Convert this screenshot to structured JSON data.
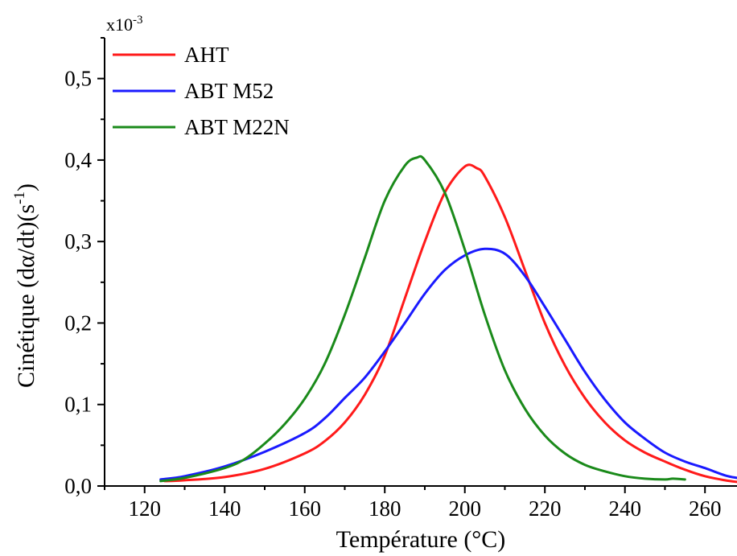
{
  "chart_data": {
    "type": "line",
    "title": "",
    "xlabel": "Température (°C)",
    "ylabel_parts": {
      "main": "Cinétique (d",
      "greek": "α",
      "mid": "/dt)(s",
      "exp": "-1",
      "end": ")"
    },
    "y_multiplier": {
      "base": "x10",
      "exp": "-3"
    },
    "xlim": [
      110,
      268
    ],
    "ylim": [
      0,
      0.55
    ],
    "x_ticks": [
      120,
      140,
      160,
      180,
      200,
      220,
      240,
      260
    ],
    "y_ticks": [
      0.0,
      0.1,
      0.2,
      0.3,
      0.4,
      0.5
    ],
    "y_tick_labels": [
      "0,0",
      "0,1",
      "0,2",
      "0,3",
      "0,4",
      "0,5"
    ],
    "legend_position": "top-left",
    "grid": false,
    "series": [
      {
        "name": "AHT",
        "color": "#ff1a1a",
        "x": [
          125,
          130,
          140,
          150,
          160,
          165,
          170,
          175,
          180,
          185,
          190,
          195,
          200,
          203,
          205,
          210,
          215,
          220,
          225,
          230,
          235,
          240,
          245,
          250,
          255,
          260,
          265,
          268
        ],
        "y": [
          0.006,
          0.007,
          0.011,
          0.021,
          0.04,
          0.055,
          0.078,
          0.112,
          0.16,
          0.23,
          0.3,
          0.36,
          0.392,
          0.39,
          0.38,
          0.33,
          0.265,
          0.2,
          0.148,
          0.108,
          0.078,
          0.056,
          0.041,
          0.03,
          0.02,
          0.012,
          0.007,
          0.005
        ]
      },
      {
        "name": "ABT M52",
        "color": "#1a1aff",
        "x": [
          124,
          130,
          140,
          150,
          160,
          165,
          170,
          175,
          180,
          185,
          190,
          195,
          200,
          205,
          210,
          215,
          220,
          225,
          230,
          235,
          240,
          245,
          250,
          255,
          260,
          265,
          268
        ],
        "y": [
          0.008,
          0.012,
          0.024,
          0.042,
          0.065,
          0.083,
          0.108,
          0.133,
          0.165,
          0.2,
          0.236,
          0.265,
          0.283,
          0.291,
          0.285,
          0.258,
          0.22,
          0.18,
          0.14,
          0.106,
          0.078,
          0.058,
          0.041,
          0.03,
          0.022,
          0.013,
          0.01
        ]
      },
      {
        "name": "ABT M22N",
        "color": "#1a8a1a",
        "x": [
          124,
          130,
          140,
          145,
          150,
          155,
          160,
          165,
          170,
          175,
          180,
          185,
          188,
          190,
          195,
          200,
          205,
          210,
          215,
          220,
          225,
          230,
          235,
          240,
          245,
          250,
          252,
          255
        ],
        "y": [
          0.006,
          0.01,
          0.022,
          0.033,
          0.052,
          0.076,
          0.107,
          0.15,
          0.21,
          0.28,
          0.35,
          0.393,
          0.403,
          0.4,
          0.36,
          0.29,
          0.21,
          0.142,
          0.095,
          0.062,
          0.04,
          0.026,
          0.018,
          0.012,
          0.009,
          0.008,
          0.009,
          0.008
        ]
      }
    ]
  }
}
